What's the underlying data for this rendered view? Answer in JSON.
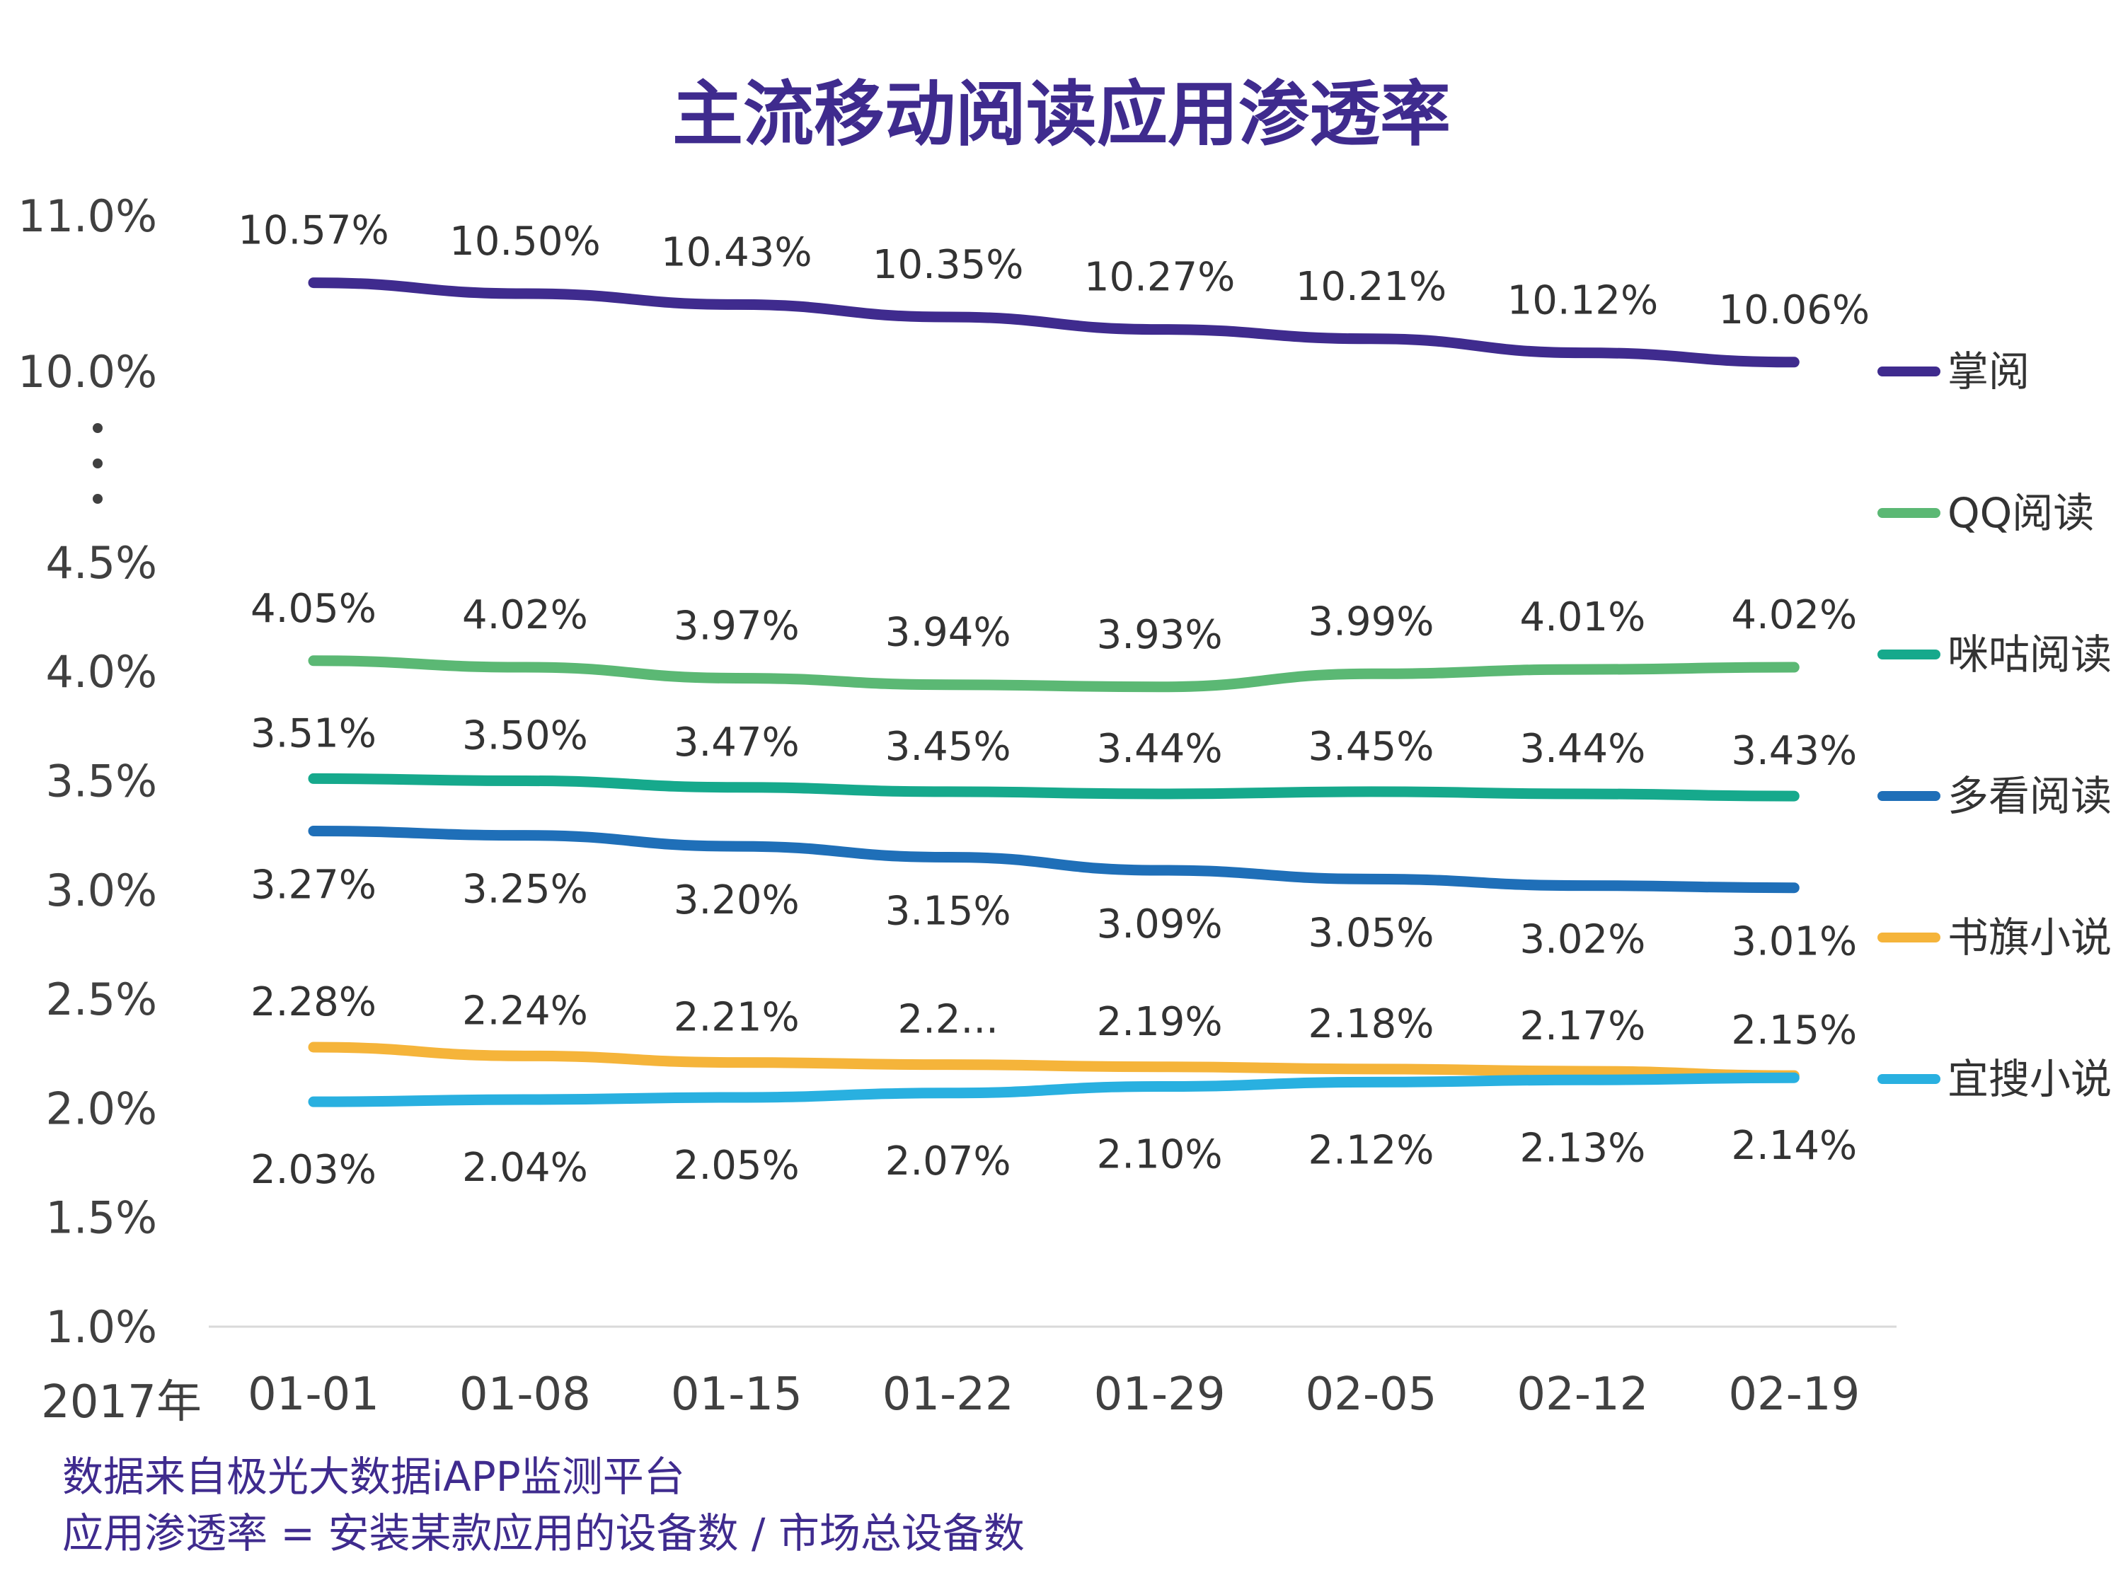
{
  "chart_data": {
    "type": "line",
    "title": "主流移动阅读应用渗透率",
    "x_prefix": "2017年",
    "categories": [
      "01-01",
      "01-08",
      "01-15",
      "01-22",
      "01-29",
      "02-05",
      "02-12",
      "02-19"
    ],
    "y_ticks": [
      "1.0%",
      "1.5%",
      "2.0%",
      "2.5%",
      "3.0%",
      "3.5%",
      "4.0%",
      "4.5%",
      "10.0%",
      "11.0%"
    ],
    "y_axis_break": "4.5% → 10.0%",
    "ylim": [
      1.0,
      11.0
    ],
    "legend_position": "right",
    "series": [
      {
        "name": "掌阅",
        "color": "#3f2b8e",
        "values": [
          10.57,
          10.5,
          10.43,
          10.35,
          10.27,
          10.21,
          10.12,
          10.06
        ],
        "labels": [
          "10.57%",
          "10.50%",
          "10.43%",
          "10.35%",
          "10.27%",
          "10.21%",
          "10.12%",
          "10.06%"
        ]
      },
      {
        "name": "QQ阅读",
        "color": "#5bb874",
        "values": [
          4.05,
          4.02,
          3.97,
          3.94,
          3.93,
          3.99,
          4.01,
          4.02
        ],
        "labels": [
          "4.05%",
          "4.02%",
          "3.97%",
          "3.94%",
          "3.93%",
          "3.99%",
          "4.01%",
          "4.02%"
        ]
      },
      {
        "name": "咪咕阅读",
        "color": "#16a98c",
        "values": [
          3.51,
          3.5,
          3.47,
          3.45,
          3.44,
          3.45,
          3.44,
          3.43
        ],
        "labels": [
          "3.51%",
          "3.50%",
          "3.47%",
          "3.45%",
          "3.44%",
          "3.45%",
          "3.44%",
          "3.43%"
        ]
      },
      {
        "name": "多看阅读",
        "color": "#1f6fb8",
        "values": [
          3.27,
          3.25,
          3.2,
          3.15,
          3.09,
          3.05,
          3.02,
          3.01
        ],
        "labels": [
          "3.27%",
          "3.25%",
          "3.20%",
          "3.15%",
          "3.09%",
          "3.05%",
          "3.02%",
          "3.01%"
        ]
      },
      {
        "name": "书旗小说",
        "color": "#f5b43a",
        "values": [
          2.28,
          2.24,
          2.21,
          2.2,
          2.19,
          2.18,
          2.17,
          2.15
        ],
        "labels": [
          "2.28%",
          "2.24%",
          "2.21%",
          "2.2...",
          "2.19%",
          "2.18%",
          "2.17%",
          "2.15%"
        ]
      },
      {
        "name": "宜搜小说",
        "color": "#29b0e0",
        "values": [
          2.03,
          2.04,
          2.05,
          2.07,
          2.1,
          2.12,
          2.13,
          2.14
        ],
        "labels": [
          "2.03%",
          "2.04%",
          "2.05%",
          "2.07%",
          "2.10%",
          "2.12%",
          "2.13%",
          "2.14%"
        ]
      }
    ]
  },
  "footnotes": {
    "line1": "数据来自极光大数据iAPP监测平台",
    "line2": "应用渗透率 = 安装某款应用的设备数 / 市场总设备数"
  }
}
